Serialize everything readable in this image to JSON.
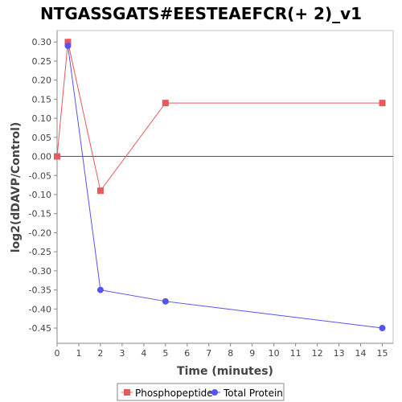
{
  "chart_data": {
    "type": "line",
    "title": "NTGASSGATS#EESTEAEFCR(+ 2)_v1",
    "xlabel": "Time (minutes)",
    "ylabel": "log2(dDAVP/Control)",
    "xlim": [
      0,
      15.5
    ],
    "ylim": [
      -0.49,
      0.33
    ],
    "xticks": [
      0,
      1,
      2,
      3,
      4,
      5,
      6,
      7,
      8,
      9,
      10,
      11,
      12,
      13,
      14,
      15
    ],
    "yticks": [
      0.3,
      0.25,
      0.2,
      0.15,
      0.1,
      0.05,
      0.0,
      -0.05,
      -0.1,
      -0.15,
      -0.2,
      -0.25,
      -0.3,
      -0.35,
      -0.4,
      -0.45
    ],
    "ytick_labels": [
      "0.30",
      "0.25",
      "0.20",
      "0.15",
      "0.10",
      "0.05",
      "0.00",
      "-0.05",
      "-0.10",
      "-0.15",
      "-0.20",
      "-0.25",
      "-0.30",
      "-0.35",
      "-0.40",
      "-0.45"
    ],
    "zero_line": true,
    "grid": false,
    "legend_position": "bottom",
    "series": [
      {
        "name": "Phosphopeptide",
        "color": "#e8595c",
        "marker": "square",
        "x": [
          0,
          0.5,
          2,
          5,
          15
        ],
        "y": [
          0.0,
          0.3,
          -0.09,
          0.14,
          0.14
        ]
      },
      {
        "name": "Total Protein",
        "color": "#5555ee",
        "marker": "circle",
        "x": [
          0.5,
          2,
          5,
          15
        ],
        "y": [
          0.29,
          -0.35,
          -0.38,
          -0.45
        ]
      }
    ]
  }
}
